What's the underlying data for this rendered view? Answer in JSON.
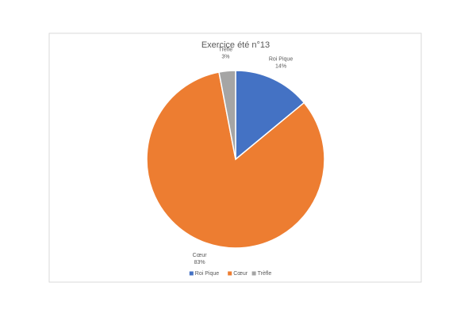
{
  "chart_data": {
    "type": "pie",
    "title": "Exercice été n°13",
    "categories": [
      "Roi Pique",
      "Cœur",
      "Trèfle"
    ],
    "values": [
      14,
      83,
      3
    ],
    "value_labels": [
      "14%",
      "83%",
      "3%"
    ],
    "colors": [
      "#4472c4",
      "#ed7d31",
      "#a5a5a5"
    ],
    "legend": "bottom"
  }
}
